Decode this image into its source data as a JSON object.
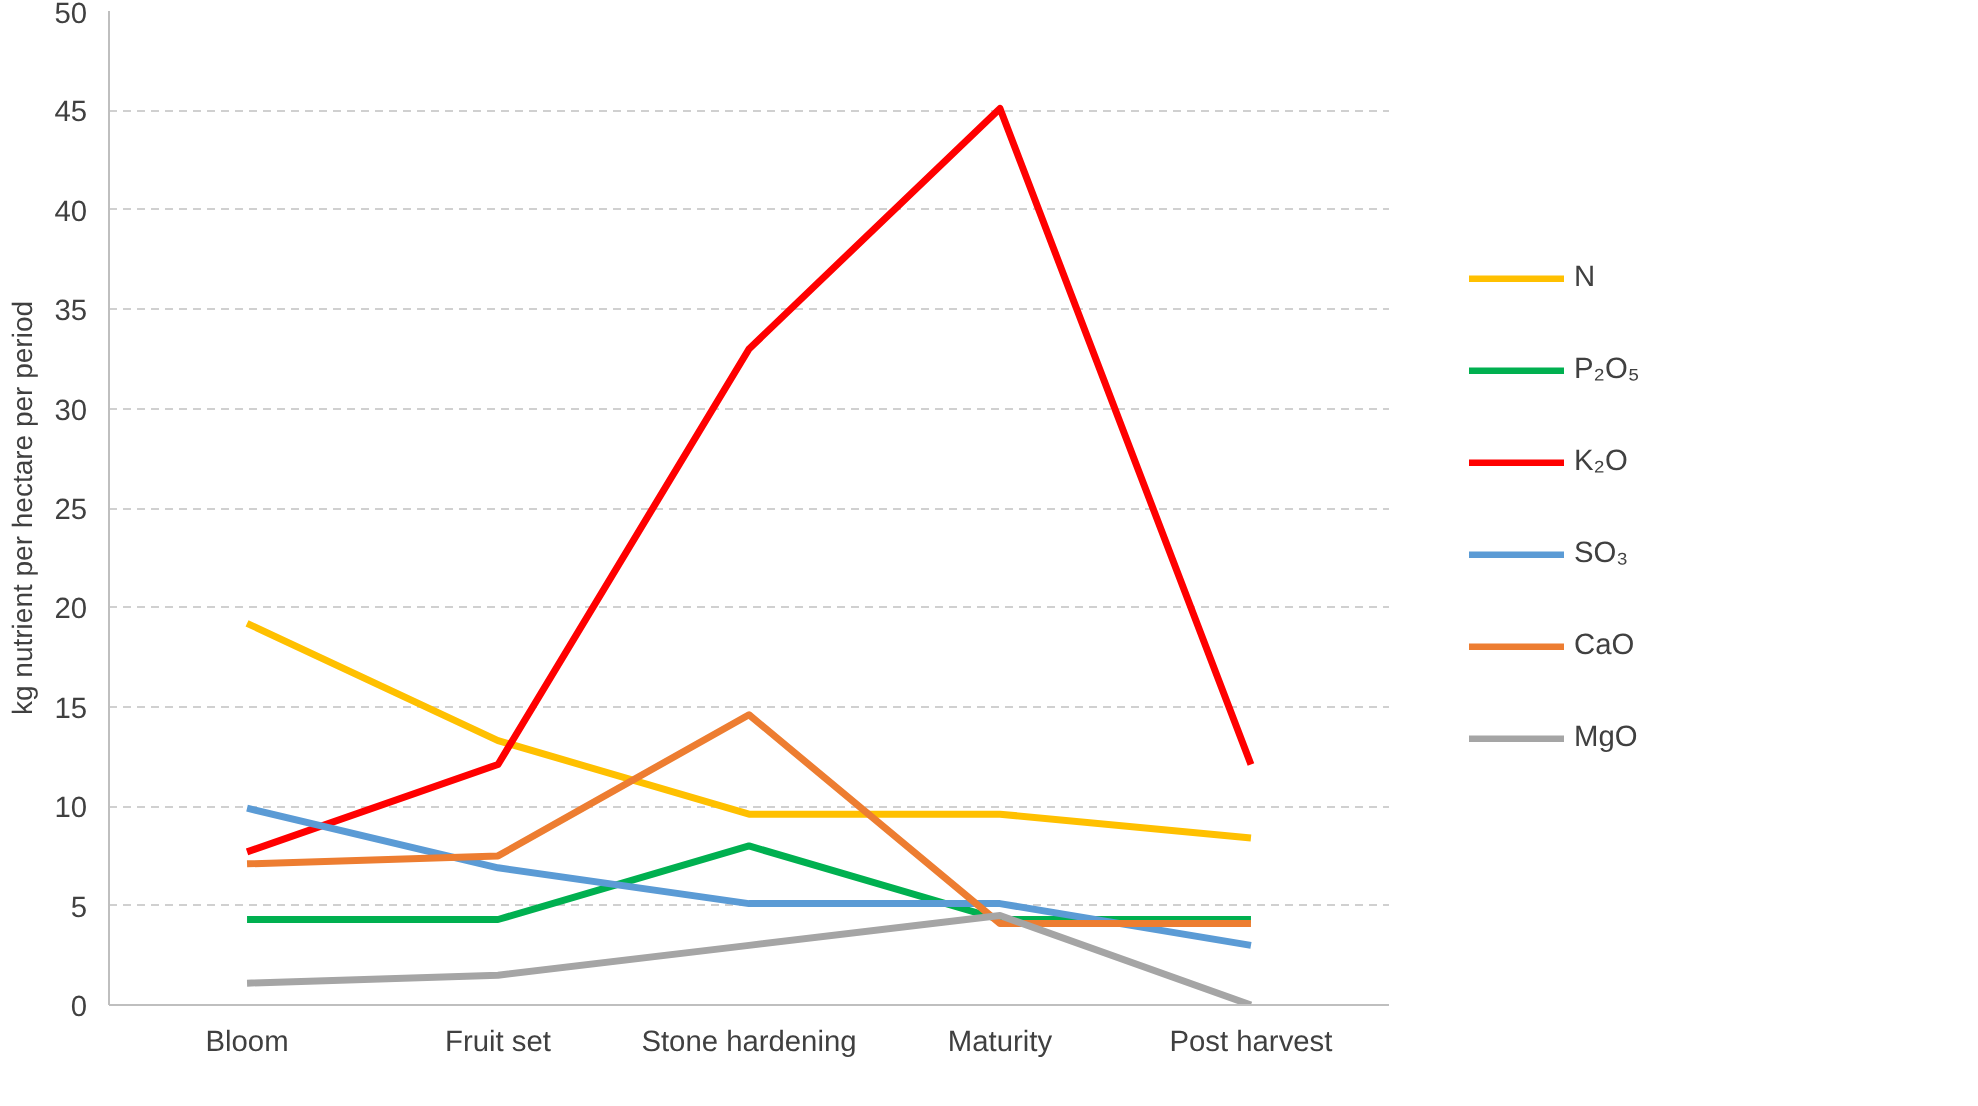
{
  "chart_data": {
    "type": "line",
    "ylabel": "kg nutrient per hectare per period",
    "categories": [
      "Bloom",
      "Fruit set",
      "Stone hardening",
      "Maturity",
      "Post harvest"
    ],
    "series": [
      {
        "name": "N",
        "color": "#ffc000",
        "values": [
          19.2,
          13.3,
          9.6,
          9.6,
          8.4
        ]
      },
      {
        "name": "P₂O₅",
        "color": "#00b050",
        "values": [
          4.3,
          4.3,
          8.0,
          4.3,
          4.3
        ]
      },
      {
        "name": "K₂O",
        "color": "#ff0000",
        "values": [
          7.7,
          12.1,
          33.0,
          45.1,
          12.1
        ]
      },
      {
        "name": "SO₃",
        "color": "#5b9bd5",
        "values": [
          9.9,
          6.9,
          5.1,
          5.1,
          3.0
        ]
      },
      {
        "name": "CaO",
        "color": "#ed7d31",
        "values": [
          7.1,
          7.5,
          14.6,
          4.1,
          4.1
        ]
      },
      {
        "name": "MgO",
        "color": "#a5a5a5",
        "values": [
          1.1,
          1.5,
          3.0,
          4.5,
          0
        ]
      }
    ],
    "ylim": [
      0,
      50
    ],
    "yticks": [
      0,
      5,
      10,
      15,
      20,
      25,
      30,
      35,
      40,
      45,
      50
    ],
    "grid": "y",
    "legend": "right",
    "marker": "none",
    "line_style": "solid"
  }
}
